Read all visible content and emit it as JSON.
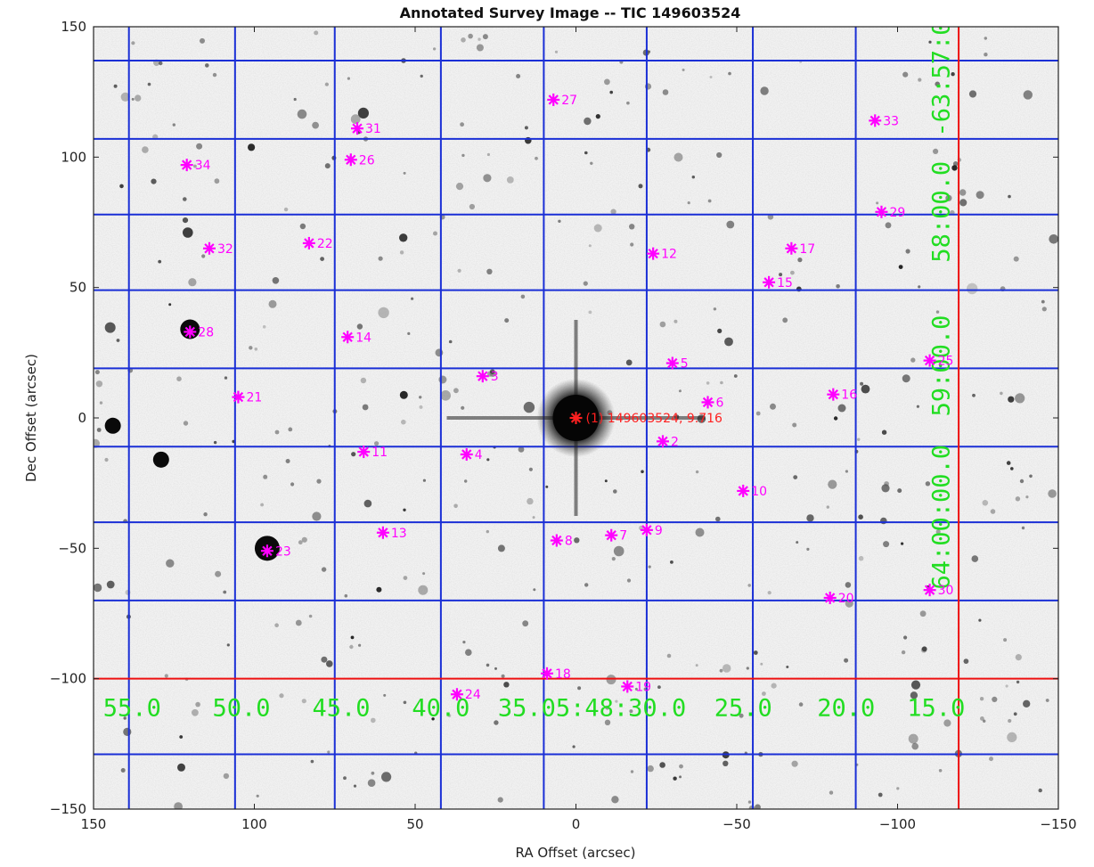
{
  "chart_data": {
    "type": "scatter",
    "title": "Annotated Survey Image -- TIC 149603524",
    "xlabel": "RA Offset (arcsec)",
    "ylabel": "Dec Offset (arcsec)",
    "xlim": [
      150,
      -150
    ],
    "ylim": [
      -150,
      150
    ],
    "x_ticks": [
      150,
      100,
      50,
      0,
      -50,
      -100,
      -150
    ],
    "y_ticks": [
      150,
      100,
      50,
      0,
      -50,
      -100,
      -150
    ],
    "x_tick_labels": [
      "150",
      "100",
      "50",
      "0",
      "−50",
      "−100",
      "−150"
    ],
    "y_tick_labels": [
      "150",
      "100",
      "50",
      "0",
      "−50",
      "−100",
      "−150"
    ],
    "target": {
      "x": 0,
      "y": 0,
      "label": "(1) 149603524, 9.716"
    },
    "stars": [
      {
        "id": "2",
        "x": -27,
        "y": -9
      },
      {
        "id": "3",
        "x": 29,
        "y": 16
      },
      {
        "id": "4",
        "x": 34,
        "y": -14
      },
      {
        "id": "5",
        "x": -30,
        "y": 21
      },
      {
        "id": "6",
        "x": -41,
        "y": 6
      },
      {
        "id": "7",
        "x": -11,
        "y": -45
      },
      {
        "id": "8",
        "x": 6,
        "y": -47
      },
      {
        "id": "9",
        "x": -22,
        "y": -43
      },
      {
        "id": "10",
        "x": -52,
        "y": -28
      },
      {
        "id": "11",
        "x": 66,
        "y": -13
      },
      {
        "id": "12",
        "x": -24,
        "y": 63
      },
      {
        "id": "13",
        "x": 60,
        "y": -44
      },
      {
        "id": "14",
        "x": 71,
        "y": 31
      },
      {
        "id": "15",
        "x": -60,
        "y": 52
      },
      {
        "id": "16",
        "x": -80,
        "y": 9
      },
      {
        "id": "17",
        "x": -67,
        "y": 65
      },
      {
        "id": "18",
        "x": 9,
        "y": -98
      },
      {
        "id": "19",
        "x": -16,
        "y": -103
      },
      {
        "id": "20",
        "x": -79,
        "y": -69
      },
      {
        "id": "21",
        "x": 105,
        "y": 8
      },
      {
        "id": "22",
        "x": 83,
        "y": 67
      },
      {
        "id": "23",
        "x": 96,
        "y": -51
      },
      {
        "id": "24",
        "x": 37,
        "y": -106
      },
      {
        "id": "25",
        "x": -110,
        "y": 22
      },
      {
        "id": "26",
        "x": 70,
        "y": 99
      },
      {
        "id": "27",
        "x": 7,
        "y": 122
      },
      {
        "id": "28",
        "x": 120,
        "y": 33
      },
      {
        "id": "29",
        "x": -95,
        "y": 79
      },
      {
        "id": "30",
        "x": -110,
        "y": -66
      },
      {
        "id": "31",
        "x": 68,
        "y": 111
      },
      {
        "id": "32",
        "x": 114,
        "y": 65
      },
      {
        "id": "33",
        "x": -93,
        "y": 114
      },
      {
        "id": "34",
        "x": 121,
        "y": 97
      }
    ],
    "ra_labels": [
      {
        "text": "55.0",
        "x": 138
      },
      {
        "text": "50.0",
        "x": 104
      },
      {
        "text": "45.0",
        "x": 73
      },
      {
        "text": "40.0",
        "x": 42
      },
      {
        "text": "35.05:48:30.0",
        "x": -5
      },
      {
        "text": "25.0",
        "x": -52
      },
      {
        "text": "20.0",
        "x": -84
      },
      {
        "text": "15.0",
        "x": -112
      }
    ],
    "dec_labels": [
      {
        "text": "-63:57:0",
        "y": 130
      },
      {
        "text": "58:00.0",
        "y": 79
      },
      {
        "text": "59:00.0",
        "y": 20
      },
      {
        "text": "64:00:00.0",
        "y": -38
      }
    ],
    "grid_lines_ra": [
      139,
      106,
      75,
      42,
      10,
      -22,
      -55,
      -87
    ],
    "grid_lines_dec": [
      137,
      107,
      78,
      49,
      19,
      -11,
      -40,
      -70,
      -129
    ],
    "red_lines": {
      "ra": -119,
      "dec": -100
    }
  }
}
